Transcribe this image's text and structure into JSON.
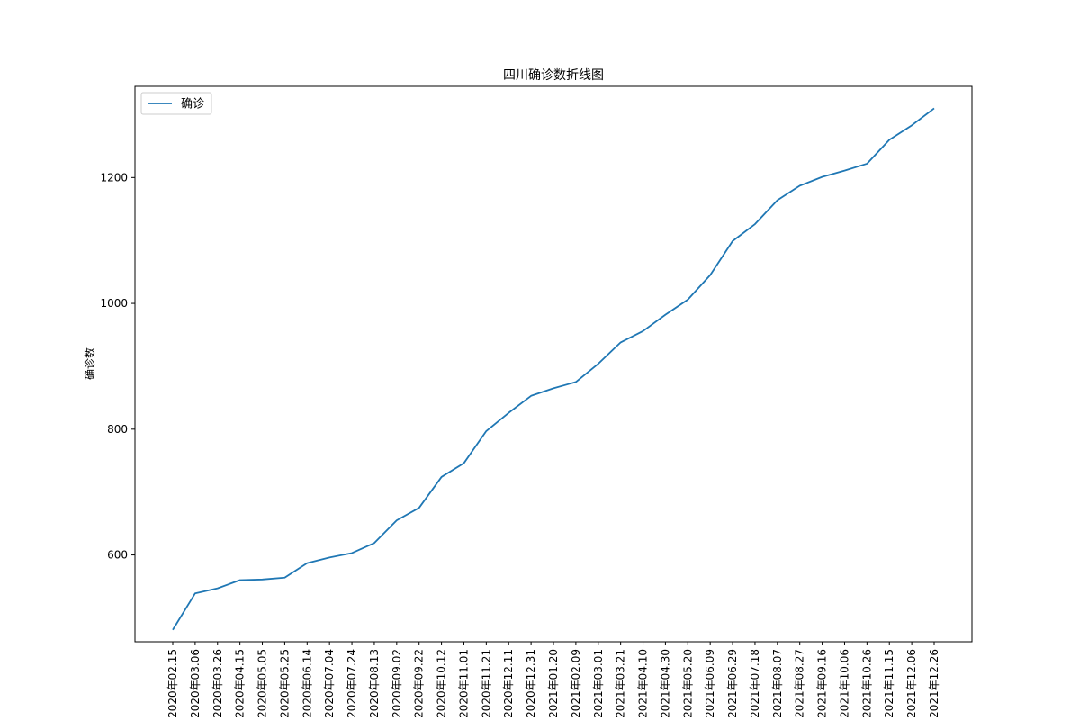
{
  "chart_data": {
    "type": "line",
    "title": "四川确诊数折线图",
    "xlabel": "",
    "ylabel": "确诊数",
    "ylim": [
      462,
      1345
    ],
    "y_ticks": [
      600,
      800,
      1000,
      1200
    ],
    "grid": false,
    "legend": "top-left",
    "x": [
      "2020年02.15",
      "2020年03.06",
      "2020年03.26",
      "2020年04.15",
      "2020年05.05",
      "2020年05.25",
      "2020年06.14",
      "2020年07.04",
      "2020年07.24",
      "2020年08.13",
      "2020年09.02",
      "2020年09.22",
      "2020年10.12",
      "2020年11.01",
      "2020年11.21",
      "2020年12.11",
      "2020年12.31",
      "2021年01.20",
      "2021年02.09",
      "2021年03.01",
      "2021年03.21",
      "2021年04.10",
      "2021年04.30",
      "2021年05.20",
      "2021年06.09",
      "2021年06.29",
      "2021年07.18",
      "2021年08.07",
      "2021年08.27",
      "2021年09.16",
      "2021年10.06",
      "2021年10.26",
      "2021年11.15",
      "2021年12.06",
      "2021年12.26"
    ],
    "series": [
      {
        "name": "确诊",
        "color": "#1f77b4",
        "values": [
          481,
          539,
          547,
          560,
          561,
          564,
          587,
          596,
          603,
          619,
          655,
          675,
          724,
          746,
          797,
          826,
          853,
          865,
          875,
          904,
          938,
          956,
          982,
          1006,
          1045,
          1099,
          1126,
          1164,
          1187,
          1201,
          1211,
          1222,
          1260,
          1283,
          1310
        ]
      }
    ]
  }
}
